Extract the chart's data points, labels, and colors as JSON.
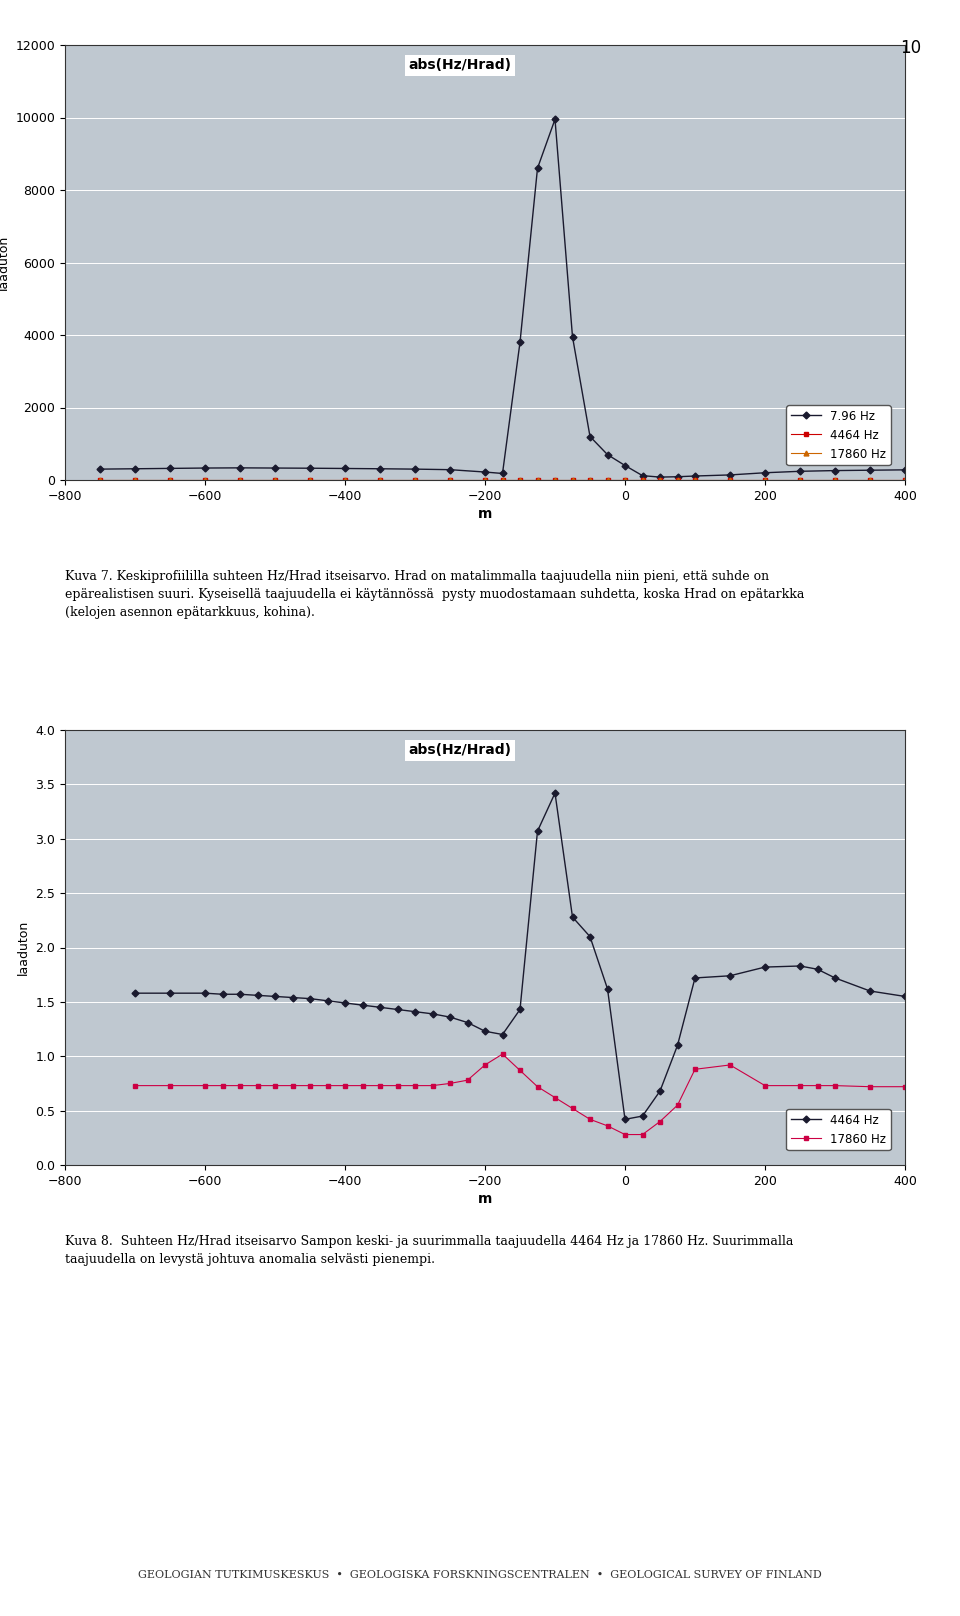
{
  "chart1": {
    "title": "abs(Hz/Hrad)",
    "ylabel": "laaduton",
    "xlabel": "m",
    "xlim": [
      -800,
      400
    ],
    "ylim": [
      0,
      12000
    ],
    "yticks": [
      0,
      2000,
      4000,
      6000,
      8000,
      10000,
      12000
    ],
    "xticks": [
      -800,
      -600,
      -400,
      -200,
      0,
      200,
      400
    ],
    "bg_color": "#bfc8d0",
    "series1_color": "#1a1a2e",
    "series2_color": "#cc0000",
    "series3_color": "#cc6600",
    "legend": [
      "7.96 Hz",
      "4464 Hz",
      "17860 Hz"
    ]
  },
  "chart2": {
    "title": "abs(Hz/Hrad)",
    "ylabel": "laaduton",
    "xlabel": "m",
    "xlim": [
      -800,
      400
    ],
    "ylim": [
      0,
      4
    ],
    "yticks": [
      0,
      0.5,
      1,
      1.5,
      2,
      2.5,
      3,
      3.5,
      4
    ],
    "xticks": [
      -800,
      -600,
      -400,
      -200,
      0,
      200,
      400
    ],
    "bg_color": "#bfc8d0",
    "series1_color": "#1a1a2e",
    "series2_color": "#cc0044",
    "legend": [
      "4464 Hz",
      "17860 Hz"
    ]
  },
  "caption1": "Kuva 7. Keskiprofiililla suhteen Hz/Hrad itseisarvo. Hrad on matalimmalla taajuudella niin pieni, että suhde on epärealistisen suuri. Kyseisellä taajuudella ei käytännössä  pysty muodostamaan suhdetta, koska Hrad on epätarkka (kelojen asennon epätarkkuus, kohina).",
  "caption2": "Kuva 8.  Suhteen Hz/Hrad itseisarvo Sampon keski- ja suurimmalla taajuudella 4464 Hz ja 17860 Hz. Suurimmalla taajuudella on levystä johtuva anomalia selvästi pienempi.",
  "footer": "GEOLOGIAN TUTKIMUSKESKUS  •  GEOLOGISKA FORSKNINGSCENTRALEN  •  GEOLOGICAL SURVEY OF FINLAND",
  "page_number": "10"
}
